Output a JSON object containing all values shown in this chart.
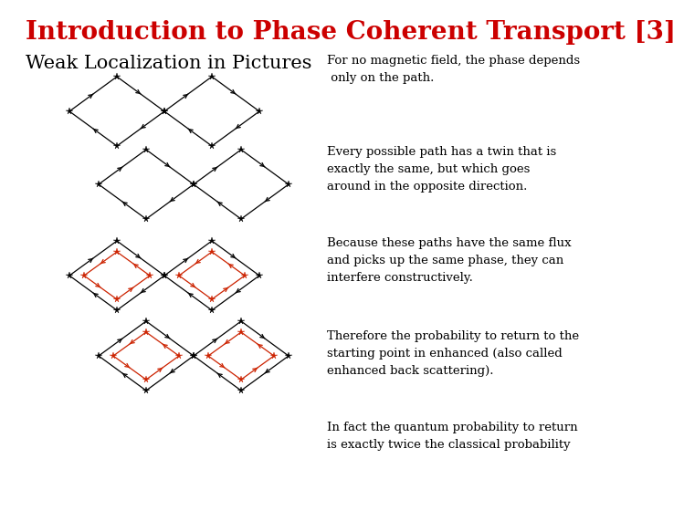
{
  "title": "Introduction to Phase Coherent Transport [3]",
  "title_color": "#cc0000",
  "title_fontsize": 20,
  "subtitle": "Weak Localization in Pictures",
  "subtitle_fontsize": 15,
  "bg_color": "#ffffff",
  "text_blocks": [
    "For no magnetic field, the phase depends\n only on the path.",
    "Every possible path has a twin that is\nexactly the same, but which goes\naround in the opposite direction.",
    "Because these paths have the same flux\nand picks up the same phase, they can\ninterfere constructively.",
    "Therefore the probability to return to the\nstarting point in enhanced (also called\nenhanced back scattering).",
    "In fact the quantum probability to return\nis exactly twice the classical probability"
  ],
  "text_fontsize": 9.5,
  "text_color": "#000000",
  "path_color": "#000000",
  "twin_color": "#cc2200"
}
